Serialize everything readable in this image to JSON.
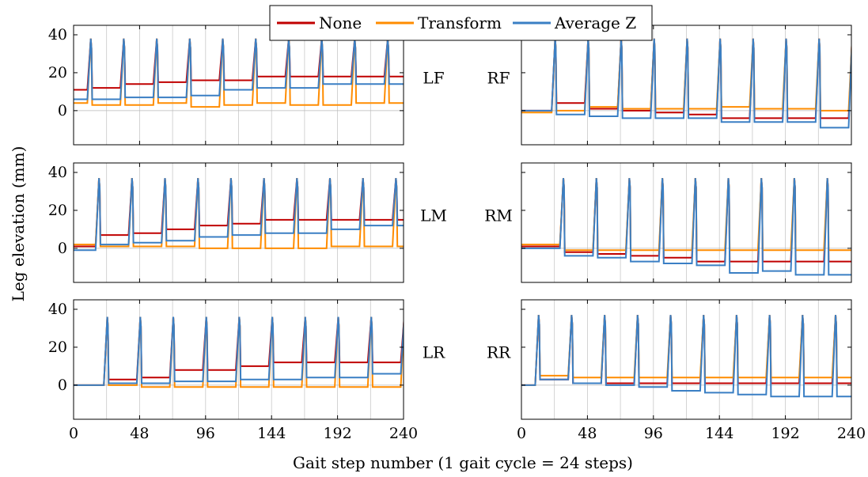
{
  "colors": {
    "None": "#c00000",
    "Transform": "#ff8c00",
    "Average Z": "#3a7fc4",
    "grid": "#c8c8c8",
    "zero": "#b8b8b8"
  },
  "chart_data": {
    "type": "line",
    "ylabel": "Leg elevation (mm)",
    "xlabel": "Gait step number (1 gait cycle = 24 steps)",
    "xlim": [
      0,
      240
    ],
    "ylim": [
      -18,
      45
    ],
    "xticks": [
      0,
      48,
      96,
      144,
      192,
      240
    ],
    "yticks": [
      0,
      20,
      40
    ],
    "grid": "vertical at gait cycles",
    "legend": {
      "position": "top-center",
      "entries": [
        "None",
        "Transform",
        "Average Z"
      ]
    },
    "panels": [
      {
        "label": "LF",
        "side": "left",
        "row": 0,
        "phase": 0,
        "peak": 38,
        "none": [
          11,
          12,
          14,
          15,
          16,
          16,
          18,
          18,
          18,
          18
        ],
        "transform": [
          4,
          3,
          3,
          4,
          2,
          3,
          4,
          3,
          3,
          4
        ],
        "average_z": [
          6,
          6,
          7,
          7,
          8,
          11,
          12,
          12,
          14,
          14
        ]
      },
      {
        "label": "RF",
        "side": "right",
        "row": 0,
        "phase": 12,
        "peak": 38,
        "none": [
          0,
          4,
          1,
          0,
          -1,
          -2,
          -4,
          -4,
          -4,
          -4
        ],
        "transform": [
          -1,
          0,
          2,
          1,
          1,
          1,
          2,
          1,
          1,
          0
        ],
        "average_z": [
          0,
          -2,
          -3,
          -4,
          -4,
          -4,
          -6,
          -6,
          -6,
          -9
        ]
      },
      {
        "label": "LM",
        "side": "left",
        "row": 1,
        "phase": 6,
        "peak": 37,
        "none": [
          1,
          7,
          8,
          10,
          12,
          13,
          15,
          15,
          15,
          15
        ],
        "transform": [
          2,
          1,
          1,
          1,
          0,
          0,
          0,
          0,
          1,
          1
        ],
        "average_z": [
          -1,
          2,
          3,
          4,
          6,
          7,
          8,
          8,
          10,
          12
        ]
      },
      {
        "label": "RM",
        "side": "right",
        "row": 1,
        "phase": 18,
        "peak": 37,
        "none": [
          1,
          -2,
          -3,
          -4,
          -5,
          -7,
          -7,
          -7,
          -7,
          -7
        ],
        "transform": [
          2,
          -1,
          -1,
          -1,
          -1,
          -1,
          -1,
          -1,
          -1,
          -1
        ],
        "average_z": [
          0,
          -4,
          -5,
          -7,
          -8,
          -9,
          -13,
          -12,
          -14,
          -14
        ]
      },
      {
        "label": "LR",
        "side": "left",
        "row": 2,
        "phase": 12,
        "peak": 36,
        "none": [
          0,
          3,
          4,
          8,
          8,
          10,
          12,
          12,
          12,
          12
        ],
        "transform": [
          0,
          0,
          -1,
          -1,
          -1,
          -1,
          -1,
          -1,
          -1,
          -1
        ],
        "average_z": [
          0,
          1,
          1,
          2,
          2,
          3,
          3,
          4,
          4,
          6
        ]
      },
      {
        "label": "RR",
        "side": "right",
        "row": 2,
        "phase": 0,
        "peak": 37,
        "none": [
          0,
          3,
          1,
          1,
          1,
          1,
          1,
          1,
          1,
          1
        ],
        "transform": [
          0,
          5,
          4,
          4,
          4,
          4,
          4,
          4,
          4,
          4
        ],
        "average_z": [
          0,
          3,
          1,
          0,
          -1,
          -3,
          -4,
          -5,
          -6,
          -6
        ]
      }
    ]
  }
}
